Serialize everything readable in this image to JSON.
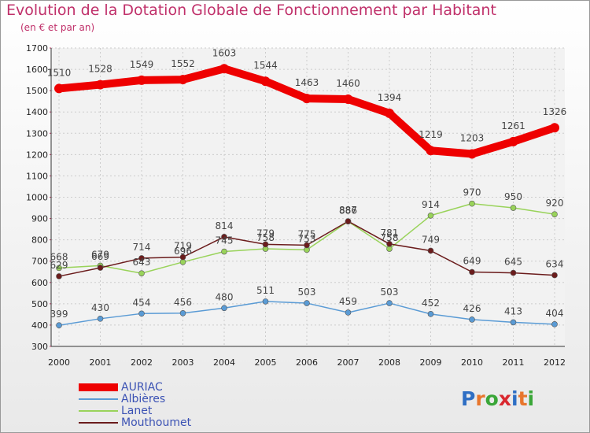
{
  "title": "Evolution de la Dotation Globale de Fonctionnement par Habitant",
  "subtitle": "(en € et par an)",
  "logo": {
    "text": "Proxiti",
    "letters": [
      "P",
      "r",
      "o",
      "x",
      "i",
      "t",
      "i"
    ],
    "colors": [
      "#2f6fc4",
      "#e8762c",
      "#3aa638",
      "#d9282f",
      "#2f6fc4",
      "#e8762c",
      "#3aa638"
    ]
  },
  "chart_data": {
    "type": "line",
    "x": [
      2000,
      2001,
      2002,
      2003,
      2004,
      2005,
      2006,
      2007,
      2008,
      2009,
      2010,
      2011,
      2012
    ],
    "ylim": [
      300,
      1700
    ],
    "yticks": [
      300,
      400,
      500,
      600,
      700,
      800,
      900,
      1000,
      1100,
      1200,
      1300,
      1400,
      1500,
      1600,
      1700
    ],
    "grid": true,
    "legend": "bottom-left",
    "series": [
      {
        "name": "AURIAC",
        "color": "#ee0000",
        "values": [
          1510,
          1528,
          1549,
          1552,
          1603,
          1544,
          1463,
          1460,
          1394,
          1219,
          1203,
          1261,
          1326
        ]
      },
      {
        "name": "Albières",
        "color": "#5a9bd5",
        "values": [
          399,
          430,
          454,
          456,
          480,
          511,
          503,
          459,
          503,
          452,
          426,
          413,
          404
        ]
      },
      {
        "name": "Lanet",
        "color": "#99d35a",
        "values": [
          668,
          679,
          643,
          696,
          745,
          758,
          753,
          886,
          758,
          914,
          970,
          950,
          920
        ]
      },
      {
        "name": "Mouthoumet",
        "color": "#6b1c1c",
        "values": [
          629,
          669,
          714,
          719,
          814,
          779,
          775,
          887,
          781,
          749,
          649,
          645,
          634
        ]
      }
    ]
  }
}
